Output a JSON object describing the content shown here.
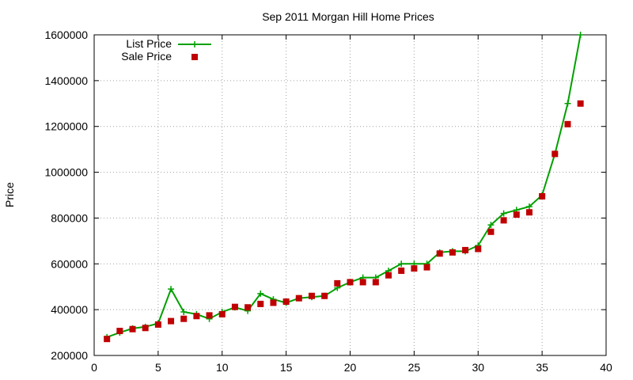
{
  "chart_data": {
    "type": "line",
    "title": "Sep 2011 Morgan Hill Home Prices",
    "xlabel": "",
    "ylabel": "Price",
    "xlim": [
      0,
      40
    ],
    "ylim": [
      200000,
      1600000
    ],
    "x_ticks": [
      "0",
      "5",
      "10",
      "15",
      "20",
      "25",
      "30",
      "35",
      "40"
    ],
    "y_ticks": [
      "200000",
      "400000",
      "600000",
      "800000",
      "1000000",
      "1200000",
      "1400000",
      "1600000"
    ],
    "grid": true,
    "legend_position": "top-left",
    "series": [
      {
        "name": "List Price",
        "style": "line-with-plus-markers",
        "color": "#00a000",
        "x": [
          1,
          2,
          3,
          4,
          5,
          6,
          7,
          8,
          9,
          10,
          11,
          12,
          13,
          14,
          15,
          16,
          17,
          18,
          19,
          20,
          21,
          22,
          23,
          24,
          25,
          26,
          27,
          28,
          29,
          30,
          31,
          32,
          33,
          34,
          35,
          36,
          37,
          38
        ],
        "values": [
          280000,
          300000,
          318000,
          325000,
          340000,
          490000,
          390000,
          380000,
          360000,
          390000,
          410000,
          395000,
          470000,
          445000,
          430000,
          450000,
          455000,
          460000,
          495000,
          520000,
          540000,
          540000,
          570000,
          600000,
          600000,
          600000,
          650000,
          655000,
          655000,
          680000,
          770000,
          820000,
          835000,
          850000,
          900000,
          1080000,
          1300000,
          1600000
        ]
      },
      {
        "name": "Sale Price",
        "style": "square-markers",
        "color": "#c00000",
        "x": [
          1,
          2,
          3,
          4,
          5,
          6,
          7,
          8,
          9,
          10,
          11,
          12,
          13,
          14,
          15,
          16,
          17,
          18,
          19,
          20,
          21,
          22,
          23,
          24,
          25,
          26,
          27,
          28,
          29,
          30,
          31,
          32,
          33,
          34,
          35,
          36,
          37,
          38
        ],
        "values": [
          272000,
          307000,
          315000,
          320000,
          335000,
          350000,
          360000,
          372000,
          375000,
          380000,
          412000,
          410000,
          425000,
          430000,
          435000,
          450000,
          460000,
          460000,
          515000,
          520000,
          520000,
          520000,
          550000,
          570000,
          580000,
          585000,
          645000,
          650000,
          660000,
          665000,
          740000,
          790000,
          815000,
          825000,
          895000,
          1080000,
          1210000,
          1300000
        ]
      }
    ]
  }
}
